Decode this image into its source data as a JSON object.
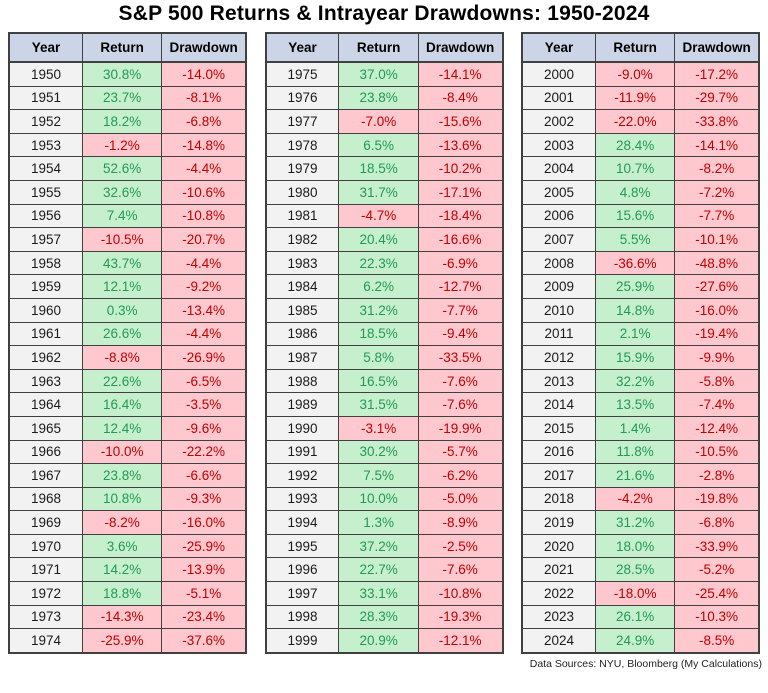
{
  "title": "S&P 500 Returns & Intrayear Drawdowns: 1950-2024",
  "footer_note": "Data Sources: NYU, Bloomberg (My Calculations)",
  "colors": {
    "header_bg": "#ccd4e8",
    "year_bg": "#f2f2f2",
    "positive_bg": "#c6efce",
    "positive_text": "#219a52",
    "negative_bg": "#ffc7ce",
    "negative_text": "#c00000",
    "grid": "#404040"
  },
  "chart_data": {
    "type": "table",
    "title": "S&P 500 Returns & Intrayear Drawdowns: 1950-2024",
    "columns": [
      "Year",
      "Return",
      "Drawdown"
    ],
    "tables": [
      {
        "rows": [
          [
            "1950",
            "30.8%",
            "-14.0%"
          ],
          [
            "1951",
            "23.7%",
            "-8.1%"
          ],
          [
            "1952",
            "18.2%",
            "-6.8%"
          ],
          [
            "1953",
            "-1.2%",
            "-14.8%"
          ],
          [
            "1954",
            "52.6%",
            "-4.4%"
          ],
          [
            "1955",
            "32.6%",
            "-10.6%"
          ],
          [
            "1956",
            "7.4%",
            "-10.8%"
          ],
          [
            "1957",
            "-10.5%",
            "-20.7%"
          ],
          [
            "1958",
            "43.7%",
            "-4.4%"
          ],
          [
            "1959",
            "12.1%",
            "-9.2%"
          ],
          [
            "1960",
            "0.3%",
            "-13.4%"
          ],
          [
            "1961",
            "26.6%",
            "-4.4%"
          ],
          [
            "1962",
            "-8.8%",
            "-26.9%"
          ],
          [
            "1963",
            "22.6%",
            "-6.5%"
          ],
          [
            "1964",
            "16.4%",
            "-3.5%"
          ],
          [
            "1965",
            "12.4%",
            "-9.6%"
          ],
          [
            "1966",
            "-10.0%",
            "-22.2%"
          ],
          [
            "1967",
            "23.8%",
            "-6.6%"
          ],
          [
            "1968",
            "10.8%",
            "-9.3%"
          ],
          [
            "1969",
            "-8.2%",
            "-16.0%"
          ],
          [
            "1970",
            "3.6%",
            "-25.9%"
          ],
          [
            "1971",
            "14.2%",
            "-13.9%"
          ],
          [
            "1972",
            "18.8%",
            "-5.1%"
          ],
          [
            "1973",
            "-14.3%",
            "-23.4%"
          ],
          [
            "1974",
            "-25.9%",
            "-37.6%"
          ]
        ]
      },
      {
        "rows": [
          [
            "1975",
            "37.0%",
            "-14.1%"
          ],
          [
            "1976",
            "23.8%",
            "-8.4%"
          ],
          [
            "1977",
            "-7.0%",
            "-15.6%"
          ],
          [
            "1978",
            "6.5%",
            "-13.6%"
          ],
          [
            "1979",
            "18.5%",
            "-10.2%"
          ],
          [
            "1980",
            "31.7%",
            "-17.1%"
          ],
          [
            "1981",
            "-4.7%",
            "-18.4%"
          ],
          [
            "1982",
            "20.4%",
            "-16.6%"
          ],
          [
            "1983",
            "22.3%",
            "-6.9%"
          ],
          [
            "1984",
            "6.2%",
            "-12.7%"
          ],
          [
            "1985",
            "31.2%",
            "-7.7%"
          ],
          [
            "1986",
            "18.5%",
            "-9.4%"
          ],
          [
            "1987",
            "5.8%",
            "-33.5%"
          ],
          [
            "1988",
            "16.5%",
            "-7.6%"
          ],
          [
            "1989",
            "31.5%",
            "-7.6%"
          ],
          [
            "1990",
            "-3.1%",
            "-19.9%"
          ],
          [
            "1991",
            "30.2%",
            "-5.7%"
          ],
          [
            "1992",
            "7.5%",
            "-6.2%"
          ],
          [
            "1993",
            "10.0%",
            "-5.0%"
          ],
          [
            "1994",
            "1.3%",
            "-8.9%"
          ],
          [
            "1995",
            "37.2%",
            "-2.5%"
          ],
          [
            "1996",
            "22.7%",
            "-7.6%"
          ],
          [
            "1997",
            "33.1%",
            "-10.8%"
          ],
          [
            "1998",
            "28.3%",
            "-19.3%"
          ],
          [
            "1999",
            "20.9%",
            "-12.1%"
          ]
        ]
      },
      {
        "rows": [
          [
            "2000",
            "-9.0%",
            "-17.2%"
          ],
          [
            "2001",
            "-11.9%",
            "-29.7%"
          ],
          [
            "2002",
            "-22.0%",
            "-33.8%"
          ],
          [
            "2003",
            "28.4%",
            "-14.1%"
          ],
          [
            "2004",
            "10.7%",
            "-8.2%"
          ],
          [
            "2005",
            "4.8%",
            "-7.2%"
          ],
          [
            "2006",
            "15.6%",
            "-7.7%"
          ],
          [
            "2007",
            "5.5%",
            "-10.1%"
          ],
          [
            "2008",
            "-36.6%",
            "-48.8%"
          ],
          [
            "2009",
            "25.9%",
            "-27.6%"
          ],
          [
            "2010",
            "14.8%",
            "-16.0%"
          ],
          [
            "2011",
            "2.1%",
            "-19.4%"
          ],
          [
            "2012",
            "15.9%",
            "-9.9%"
          ],
          [
            "2013",
            "32.2%",
            "-5.8%"
          ],
          [
            "2014",
            "13.5%",
            "-7.4%"
          ],
          [
            "2015",
            "1.4%",
            "-12.4%"
          ],
          [
            "2016",
            "11.8%",
            "-10.5%"
          ],
          [
            "2017",
            "21.6%",
            "-2.8%"
          ],
          [
            "2018",
            "-4.2%",
            "-19.8%"
          ],
          [
            "2019",
            "31.2%",
            "-6.8%"
          ],
          [
            "2020",
            "18.0%",
            "-33.9%"
          ],
          [
            "2021",
            "28.5%",
            "-5.2%"
          ],
          [
            "2022",
            "-18.0%",
            "-25.4%"
          ],
          [
            "2023",
            "26.1%",
            "-10.3%"
          ],
          [
            "2024",
            "24.9%",
            "-8.5%"
          ]
        ]
      }
    ]
  }
}
